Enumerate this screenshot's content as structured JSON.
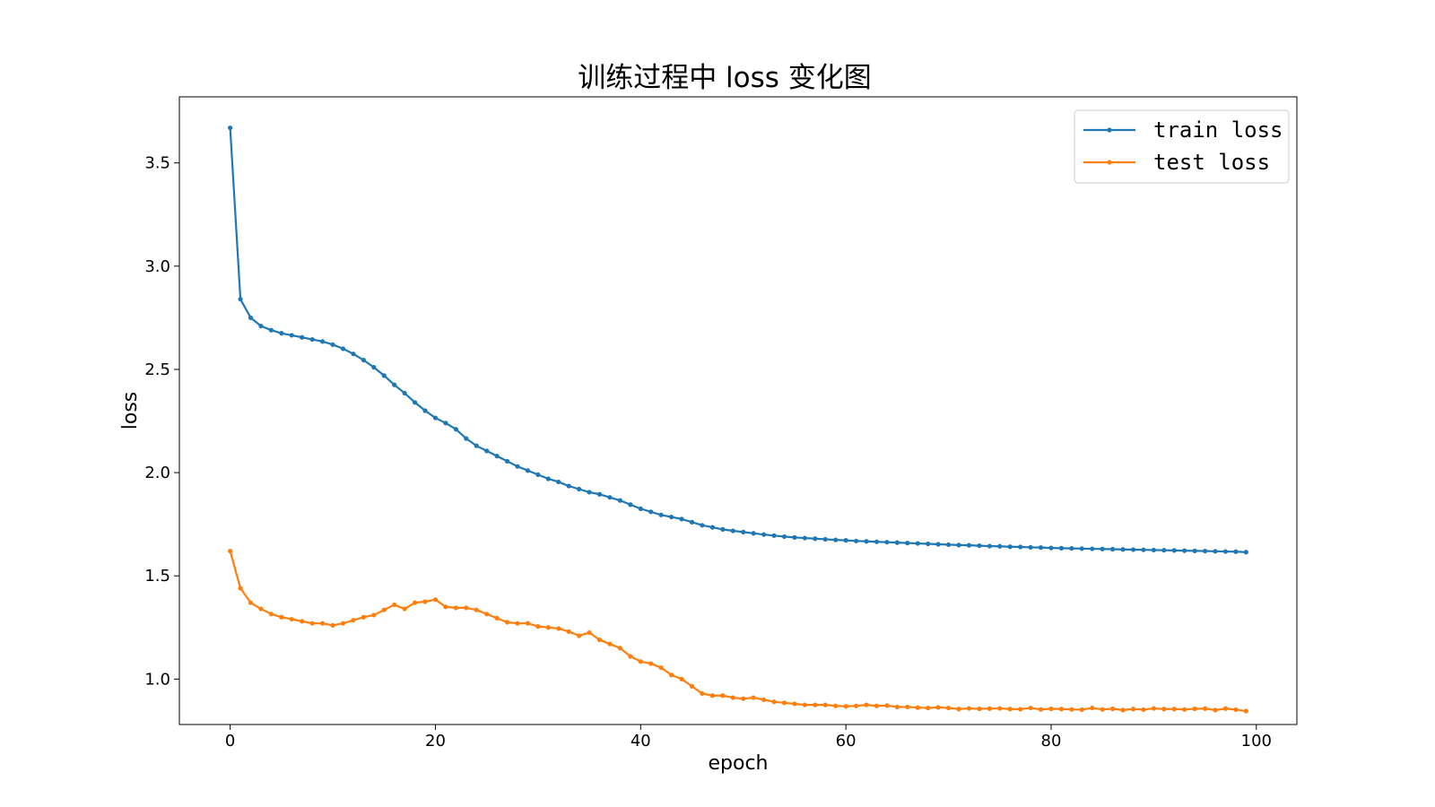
{
  "chart_data": {
    "type": "line",
    "title": "训练过程中 loss 变化图",
    "xlabel": "epoch",
    "ylabel": "loss",
    "xlim": [
      -4.95,
      103.95
    ],
    "ylim": [
      0.78,
      3.82
    ],
    "xticks": [
      0,
      20,
      40,
      60,
      80,
      100
    ],
    "yticks": [
      1.0,
      1.5,
      2.0,
      2.5,
      3.0,
      3.5
    ],
    "xtick_labels": [
      "0",
      "20",
      "40",
      "60",
      "80",
      "100"
    ],
    "ytick_labels": [
      "1.0",
      "1.5",
      "2.0",
      "2.5",
      "3.0",
      "3.5"
    ],
    "grid": false,
    "legend_position": "top-right",
    "series": [
      {
        "name": "train loss",
        "color": "#1f77b4",
        "x": [
          0,
          1,
          2,
          3,
          4,
          5,
          6,
          7,
          8,
          9,
          10,
          11,
          12,
          13,
          14,
          15,
          16,
          17,
          18,
          19,
          20,
          21,
          22,
          23,
          24,
          25,
          26,
          27,
          28,
          29,
          30,
          31,
          32,
          33,
          34,
          35,
          36,
          37,
          38,
          39,
          40,
          41,
          42,
          43,
          44,
          45,
          46,
          47,
          48,
          49,
          50,
          51,
          52,
          53,
          54,
          55,
          56,
          57,
          58,
          59,
          60,
          61,
          62,
          63,
          64,
          65,
          66,
          67,
          68,
          69,
          70,
          71,
          72,
          73,
          74,
          75,
          76,
          77,
          78,
          79,
          80,
          81,
          82,
          83,
          84,
          85,
          86,
          87,
          88,
          89,
          90,
          91,
          92,
          93,
          94,
          95,
          96,
          97,
          98,
          99
        ],
        "values": [
          3.67,
          2.84,
          2.75,
          2.71,
          2.69,
          2.675,
          2.665,
          2.655,
          2.645,
          2.635,
          2.62,
          2.6,
          2.575,
          2.545,
          2.51,
          2.47,
          2.425,
          2.385,
          2.34,
          2.3,
          2.265,
          2.24,
          2.21,
          2.165,
          2.13,
          2.105,
          2.08,
          2.055,
          2.03,
          2.01,
          1.99,
          1.97,
          1.955,
          1.935,
          1.92,
          1.905,
          1.895,
          1.88,
          1.865,
          1.845,
          1.825,
          1.81,
          1.795,
          1.785,
          1.775,
          1.76,
          1.745,
          1.735,
          1.725,
          1.718,
          1.712,
          1.706,
          1.7,
          1.695,
          1.69,
          1.686,
          1.683,
          1.68,
          1.677,
          1.674,
          1.672,
          1.669,
          1.667,
          1.665,
          1.663,
          1.661,
          1.659,
          1.657,
          1.655,
          1.653,
          1.651,
          1.649,
          1.648,
          1.646,
          1.644,
          1.643,
          1.641,
          1.64,
          1.638,
          1.637,
          1.635,
          1.634,
          1.633,
          1.632,
          1.631,
          1.63,
          1.629,
          1.628,
          1.627,
          1.626,
          1.625,
          1.624,
          1.623,
          1.622,
          1.621,
          1.62,
          1.619,
          1.618,
          1.617,
          1.615
        ]
      },
      {
        "name": "test loss",
        "color": "#ff7f0e",
        "x": [
          0,
          1,
          2,
          3,
          4,
          5,
          6,
          7,
          8,
          9,
          10,
          11,
          12,
          13,
          14,
          15,
          16,
          17,
          18,
          19,
          20,
          21,
          22,
          23,
          24,
          25,
          26,
          27,
          28,
          29,
          30,
          31,
          32,
          33,
          34,
          35,
          36,
          37,
          38,
          39,
          40,
          41,
          42,
          43,
          44,
          45,
          46,
          47,
          48,
          49,
          50,
          51,
          52,
          53,
          54,
          55,
          56,
          57,
          58,
          59,
          60,
          61,
          62,
          63,
          64,
          65,
          66,
          67,
          68,
          69,
          70,
          71,
          72,
          73,
          74,
          75,
          76,
          77,
          78,
          79,
          80,
          81,
          82,
          83,
          84,
          85,
          86,
          87,
          88,
          89,
          90,
          91,
          92,
          93,
          94,
          95,
          96,
          97,
          98,
          99
        ],
        "values": [
          1.62,
          1.44,
          1.37,
          1.34,
          1.315,
          1.3,
          1.29,
          1.28,
          1.27,
          1.27,
          1.26,
          1.27,
          1.285,
          1.3,
          1.31,
          1.335,
          1.36,
          1.34,
          1.37,
          1.375,
          1.385,
          1.35,
          1.345,
          1.345,
          1.335,
          1.315,
          1.295,
          1.275,
          1.27,
          1.27,
          1.255,
          1.25,
          1.245,
          1.23,
          1.21,
          1.225,
          1.19,
          1.17,
          1.15,
          1.11,
          1.085,
          1.075,
          1.055,
          1.02,
          1.0,
          0.965,
          0.93,
          0.92,
          0.92,
          0.91,
          0.905,
          0.91,
          0.9,
          0.89,
          0.885,
          0.88,
          0.875,
          0.875,
          0.875,
          0.87,
          0.868,
          0.87,
          0.875,
          0.87,
          0.872,
          0.865,
          0.865,
          0.862,
          0.86,
          0.863,
          0.86,
          0.855,
          0.858,
          0.856,
          0.857,
          0.858,
          0.855,
          0.854,
          0.86,
          0.853,
          0.856,
          0.855,
          0.853,
          0.852,
          0.86,
          0.853,
          0.856,
          0.85,
          0.855,
          0.852,
          0.858,
          0.855,
          0.855,
          0.853,
          0.856,
          0.857,
          0.85,
          0.857,
          0.852,
          0.845
        ]
      }
    ]
  }
}
